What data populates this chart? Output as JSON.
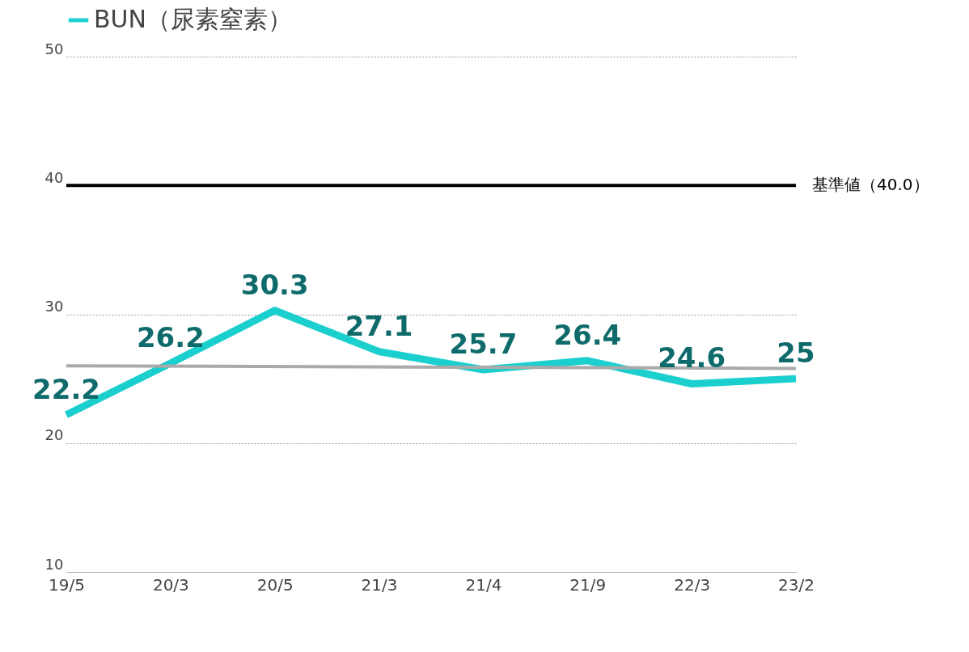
{
  "chart_data": {
    "type": "line",
    "categories": [
      "19/5",
      "20/3",
      "20/5",
      "21/3",
      "21/4",
      "21/9",
      "22/3",
      "23/2"
    ],
    "series": [
      {
        "name": "BUN（尿素窒素）",
        "color": "#1ccfcf",
        "values": [
          22.2,
          26.2,
          30.3,
          27.1,
          25.7,
          26.4,
          24.6,
          25
        ],
        "value_labels": [
          "22.2",
          "26.2",
          "30.3",
          "27.1",
          "25.7",
          "26.4",
          "24.6",
          "25"
        ]
      },
      {
        "type": "line",
        "color": "#aaaaaa",
        "x": [
          "19/5",
          "23/2"
        ],
        "values": [
          26.0,
          25.8
        ]
      }
    ],
    "ylim": [
      10,
      50
    ],
    "yticks": [
      10,
      20,
      30,
      40,
      50
    ],
    "grid": "y",
    "legend": "top",
    "ref_lines": [
      {
        "axis": "y",
        "value": 40,
        "label": "基準値（40.0）",
        "color": "#000000"
      }
    ]
  }
}
